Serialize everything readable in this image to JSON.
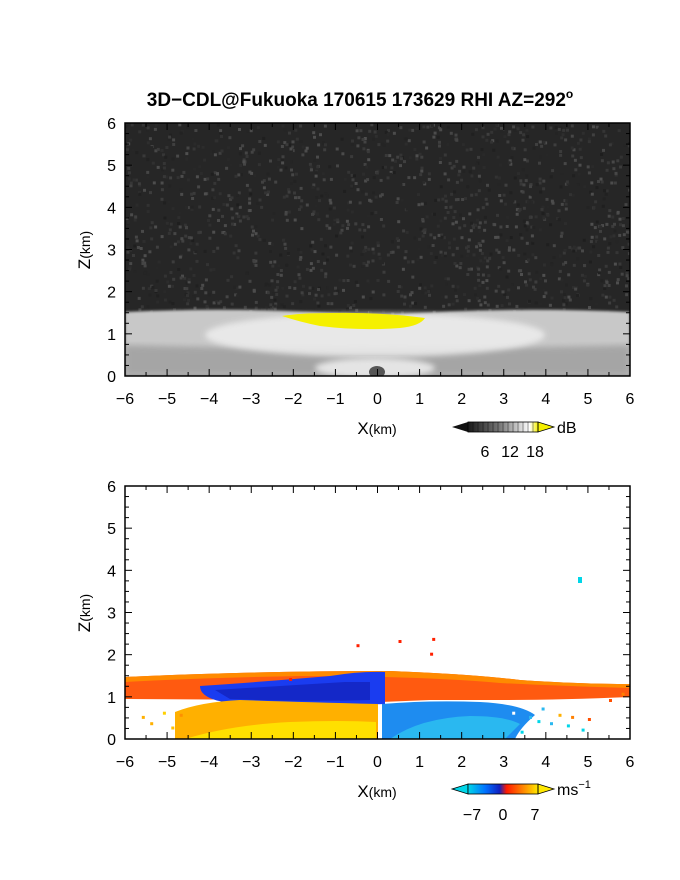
{
  "title": "3D−CDL@Fukuoka 170615 173629 RHI AZ=292",
  "title_sup": "o",
  "chart_data": [
    {
      "type": "heatmap",
      "field": "backscatter intensity",
      "xlabel": "X",
      "xlabel_unit": "(km)",
      "ylabel": "Z",
      "ylabel_unit": "(km)",
      "xlim": [
        -6,
        6
      ],
      "ylim": [
        0,
        6
      ],
      "x_ticks": [
        "−6",
        "−5",
        "−4",
        "−3",
        "−2",
        "−1",
        "0",
        "1",
        "2",
        "3",
        "4",
        "5",
        "6"
      ],
      "y_ticks": [
        "0",
        "1",
        "2",
        "3",
        "4",
        "5",
        "6"
      ],
      "background": "dark gray noise (below ~6 dB)",
      "layers": [
        {
          "desc": "bright aerosol layer",
          "x": [
            -6,
            6
          ],
          "z_top_edge": 1.5,
          "z_top_center": 1.3,
          "level_db": [
            8,
            16
          ]
        },
        {
          "desc": "saturated core (>18 dB)",
          "x": [
            -2.2,
            1.1
          ],
          "z": [
            1.15,
            1.45
          ],
          "color": "#f5f000"
        }
      ],
      "colorbar": {
        "unit": "dB",
        "ticks": [
          "6",
          "12",
          "18"
        ],
        "range": [
          0,
          20
        ],
        "colors": [
          "#1a1a1a",
          "#ffffff",
          "#f5f000"
        ]
      }
    },
    {
      "type": "heatmap",
      "field": "radial velocity",
      "xlabel": "X",
      "xlabel_unit": "(km)",
      "ylabel": "Z",
      "ylabel_unit": "(km)",
      "xlim": [
        -6,
        6
      ],
      "ylim": [
        0,
        6
      ],
      "x_ticks": [
        "−6",
        "−5",
        "−4",
        "−3",
        "−2",
        "−1",
        "0",
        "1",
        "2",
        "3",
        "4",
        "5",
        "6"
      ],
      "y_ticks": [
        "0",
        "1",
        "2",
        "3",
        "4",
        "5",
        "6"
      ],
      "regions": [
        {
          "desc": "upper layer, positive (red-orange)",
          "x": [
            -6,
            6
          ],
          "z": [
            1.0,
            1.55
          ],
          "value": 3
        },
        {
          "desc": "negative band (blue)",
          "x": [
            -4.3,
            0.2
          ],
          "z": [
            0.85,
            1.45
          ],
          "value": -4
        },
        {
          "desc": "near-surface positive (yellow-orange)",
          "x": [
            -5.5,
            0
          ],
          "z": [
            0,
            0.85
          ],
          "value": 6
        },
        {
          "desc": "near-surface negative (light blue)",
          "x": [
            0.1,
            4.0
          ],
          "z": [
            0,
            0.8
          ],
          "value": -6
        },
        {
          "desc": "isolated return",
          "x": [
            4.8,
            4.9
          ],
          "z": [
            3.7,
            3.8
          ],
          "value": -7
        }
      ],
      "colorbar": {
        "unit": "ms",
        "unit_sup": "−1",
        "ticks": [
          "−7",
          "0",
          "7"
        ],
        "range": [
          -8,
          8
        ],
        "colors": [
          "#00d6e8",
          "#0050ff",
          "#1020c0",
          "#ff2000",
          "#ff8000",
          "#ffe000"
        ]
      }
    }
  ]
}
